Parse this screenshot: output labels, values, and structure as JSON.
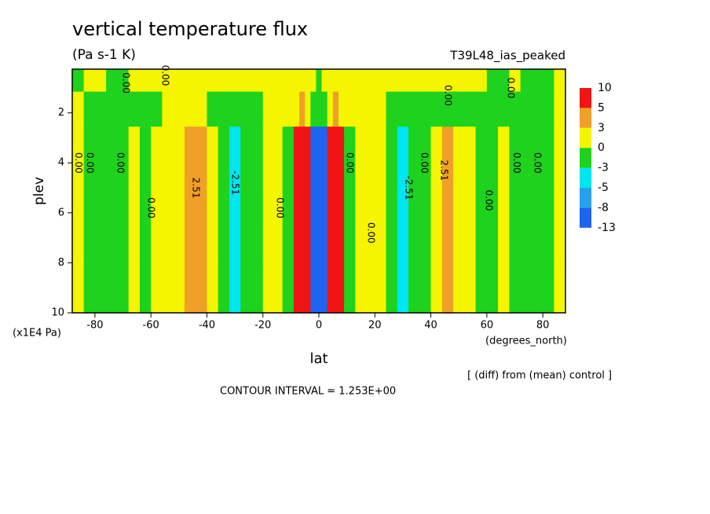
{
  "chart_data": {
    "type": "contour",
    "title": "vertical temperature flux",
    "subtitle": "(Pa s-1 K)",
    "run": "T39L48_ias_peaked",
    "y_label": "plev",
    "y_units": "(x1E4 Pa)",
    "x_label": "lat",
    "x_units": "(degrees_north)",
    "note": "[ (diff) from (mean) control ]",
    "contour_interval": "CONTOUR INTERVAL = 1.253E+00",
    "xlim": [
      -88.1,
      88.1
    ],
    "ylim": [
      10,
      0.25
    ],
    "xticks": [
      -80,
      -60,
      -40,
      -20,
      0,
      20,
      40,
      60,
      80
    ],
    "yticks": [
      2,
      4,
      6,
      8,
      10
    ],
    "levels": [
      10,
      5,
      3,
      0,
      -3,
      -5,
      -8,
      -13
    ],
    "colors": [
      "#f01414",
      "#f0a028",
      "#f5f500",
      "#1ed21e",
      "#00e6f0",
      "#28a0f0",
      "#1e64f0"
    ],
    "lat": [
      -86,
      -82,
      -78,
      -74,
      -70,
      -66,
      -62,
      -58,
      -54,
      -50,
      -46,
      -42,
      -38,
      -34,
      -30,
      -26,
      -22,
      -18,
      -14,
      -12,
      -10,
      -8,
      -6,
      -4,
      -2,
      0,
      2,
      4,
      6,
      8,
      10,
      12,
      14,
      18,
      22,
      26,
      30,
      34,
      38,
      42,
      46,
      50,
      54,
      58,
      62,
      66,
      70,
      74,
      78,
      82,
      86
    ],
    "plev": [
      0.7,
      1.6,
      3.5,
      6.5,
      9.2
    ],
    "z": [
      [
        -0.5,
        0.5,
        0.5,
        -0.5,
        -0.5,
        0.5,
        1,
        1,
        1,
        1,
        1,
        1,
        1,
        1,
        1,
        1,
        1,
        1,
        1,
        1,
        1,
        1,
        1,
        1,
        1,
        -0.5,
        1,
        1,
        1,
        1,
        1,
        1,
        1,
        1,
        1,
        1,
        1,
        1,
        1,
        1,
        1,
        1,
        1,
        1,
        -0.5,
        -0.5,
        0.5,
        -0.5,
        -0.5,
        -0.5,
        0.5
      ],
      [
        0.5,
        -1,
        -1.5,
        -1.5,
        -1.5,
        -1,
        -1,
        -0.5,
        0.5,
        1,
        1.5,
        1,
        -0.5,
        -1,
        -1.5,
        -1,
        -0.5,
        0.5,
        1,
        1,
        0.5,
        2,
        4,
        2,
        -2,
        -2.5,
        -2,
        2,
        4,
        2,
        0.5,
        1,
        1,
        1,
        0.5,
        -0.5,
        -1,
        -1,
        -1,
        -1,
        -0.5,
        -1,
        -1,
        -1,
        -1,
        -1,
        -1,
        -1,
        -1,
        -1,
        0.5
      ],
      [
        1,
        -0.5,
        -1.5,
        -1.5,
        -1,
        0.5,
        -1,
        0.5,
        1,
        2,
        3.5,
        3.5,
        1.5,
        -1.5,
        -4,
        -2,
        -0.5,
        1,
        1.5,
        -0.5,
        -1.5,
        7,
        8,
        6,
        -9,
        -10,
        -9,
        6,
        8,
        7,
        -1.5,
        -0.5,
        1,
        1.5,
        1,
        -1.5,
        -4,
        -2,
        -0.5,
        2,
        3.5,
        1.5,
        0.5,
        -1,
        -1,
        0.5,
        -1,
        -1,
        -1.5,
        -0.5,
        1
      ],
      [
        1,
        -0.5,
        -1.5,
        -1.5,
        -1,
        0.5,
        -1,
        0.5,
        1,
        2,
        3.5,
        3.5,
        1.5,
        -1.5,
        -4,
        -2,
        -0.5,
        1,
        1.5,
        -0.5,
        -1.5,
        7,
        8,
        6,
        -9,
        -10,
        -9,
        6,
        8,
        7,
        -1.5,
        -0.5,
        1,
        1.5,
        1,
        -1.5,
        -4,
        -2,
        -0.5,
        2,
        3.5,
        1.5,
        0.5,
        -1,
        -1,
        0.5,
        -1,
        -1,
        -1.5,
        -0.5,
        1
      ],
      [
        1,
        -0.5,
        -1.5,
        -1.5,
        -1,
        0.5,
        -1,
        0.5,
        1,
        2,
        3.5,
        3.5,
        1.5,
        -1.5,
        -4,
        -2,
        -0.5,
        1,
        1.5,
        -0.5,
        -1.5,
        7,
        8,
        6,
        -9,
        -10,
        -9,
        6,
        8,
        7,
        -1.5,
        -0.5,
        1,
        1.5,
        1,
        -1.5,
        -4,
        -2,
        -0.5,
        2,
        3.5,
        1.5,
        0.5,
        -1,
        -1,
        0.5,
        -1,
        -1,
        -1.5,
        -0.5,
        1
      ]
    ],
    "contour_labels": [
      {
        "text": "0.00",
        "lat": -69,
        "plev": 0.8
      },
      {
        "text": "0.00",
        "lat": -55,
        "plev": 0.5
      },
      {
        "text": "0.00",
        "lat": -86,
        "plev": 4
      },
      {
        "text": "0.00",
        "lat": -82,
        "plev": 4
      },
      {
        "text": "0.00",
        "lat": -71,
        "plev": 4
      },
      {
        "text": "0.00",
        "lat": -60,
        "plev": 5.8
      },
      {
        "text": "2.51",
        "lat": -44,
        "plev": 5
      },
      {
        "text": "-2.51",
        "lat": -30,
        "plev": 4.8
      },
      {
        "text": "0.00",
        "lat": -14,
        "plev": 5.8
      },
      {
        "text": "0.00",
        "lat": 11,
        "plev": 4
      },
      {
        "text": "0.00",
        "lat": 18.5,
        "plev": 6.8
      },
      {
        "text": "-2.51",
        "lat": 32,
        "plev": 5
      },
      {
        "text": "0.00",
        "lat": 37.6,
        "plev": 4
      },
      {
        "text": "2.51",
        "lat": 44.6,
        "plev": 4.3
      },
      {
        "text": "0.00",
        "lat": 60.6,
        "plev": 5.5
      },
      {
        "text": "0.00",
        "lat": 70.5,
        "plev": 4
      },
      {
        "text": "0.00",
        "lat": 78,
        "plev": 4
      },
      {
        "text": "0.00",
        "lat": 46,
        "plev": 1.3
      },
      {
        "text": "0.00",
        "lat": 68.5,
        "plev": 1
      }
    ]
  }
}
